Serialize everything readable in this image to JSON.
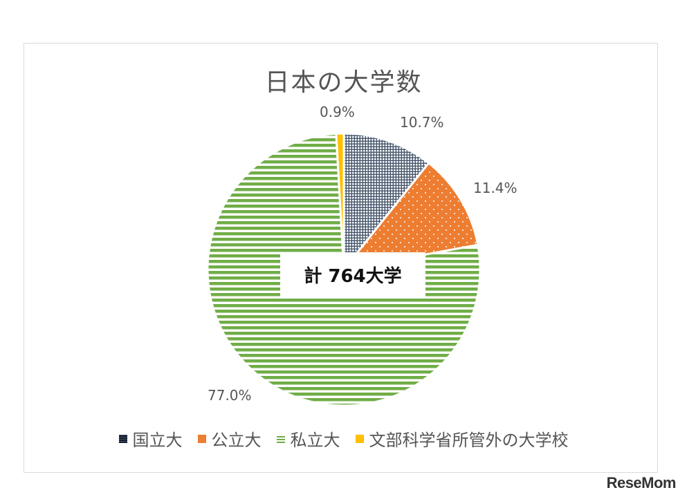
{
  "chart_data": {
    "type": "pie",
    "title": "日本の大学数",
    "center_label": "計 764大学",
    "slices": [
      {
        "name": "国立大",
        "value": 10.7,
        "label": "10.7%",
        "color": "#44546a",
        "pattern": "grid"
      },
      {
        "name": "公立大",
        "value": 11.4,
        "label": "11.4%",
        "color": "#ed7d31",
        "pattern": "dots"
      },
      {
        "name": "私立大",
        "value": 77.0,
        "label": "77.0%",
        "color": "#70ad47",
        "pattern": "horizontal-lines"
      },
      {
        "name": "文部科学省所管外の大学校",
        "value": 0.9,
        "label": "0.9%",
        "color": "#ffc000",
        "pattern": "solid"
      }
    ],
    "legend_position": "bottom"
  },
  "watermark": "ReseMom"
}
